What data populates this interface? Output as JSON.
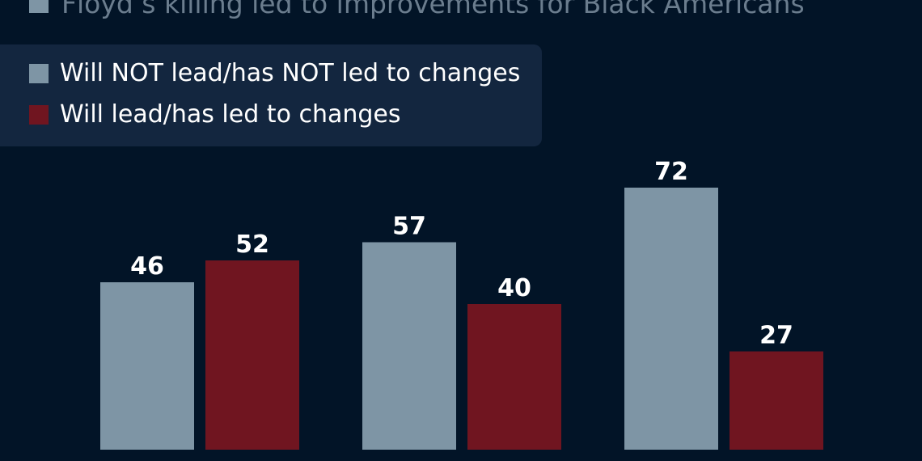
{
  "subtitle": {
    "text": "Floyd’s killing led to improvements for Black Americans",
    "color": "#7e95a5"
  },
  "legend": {
    "items": [
      {
        "label": "Will NOT lead/has NOT led to changes",
        "color": "#7e95a5"
      },
      {
        "label": "Will lead/has led to changes",
        "color": "#701520"
      }
    ]
  },
  "chart_data": {
    "type": "bar",
    "categories": [
      "",
      "",
      ""
    ],
    "series": [
      {
        "name": "Will NOT lead/has NOT led to changes",
        "values": [
          46,
          57,
          72
        ],
        "color": "#7e95a5"
      },
      {
        "name": "Will lead/has led to changes",
        "values": [
          52,
          40,
          27
        ],
        "color": "#701520"
      }
    ],
    "xlabel": "",
    "ylabel": "",
    "grid": false,
    "legend_position": "top-left",
    "data_labels": true
  }
}
